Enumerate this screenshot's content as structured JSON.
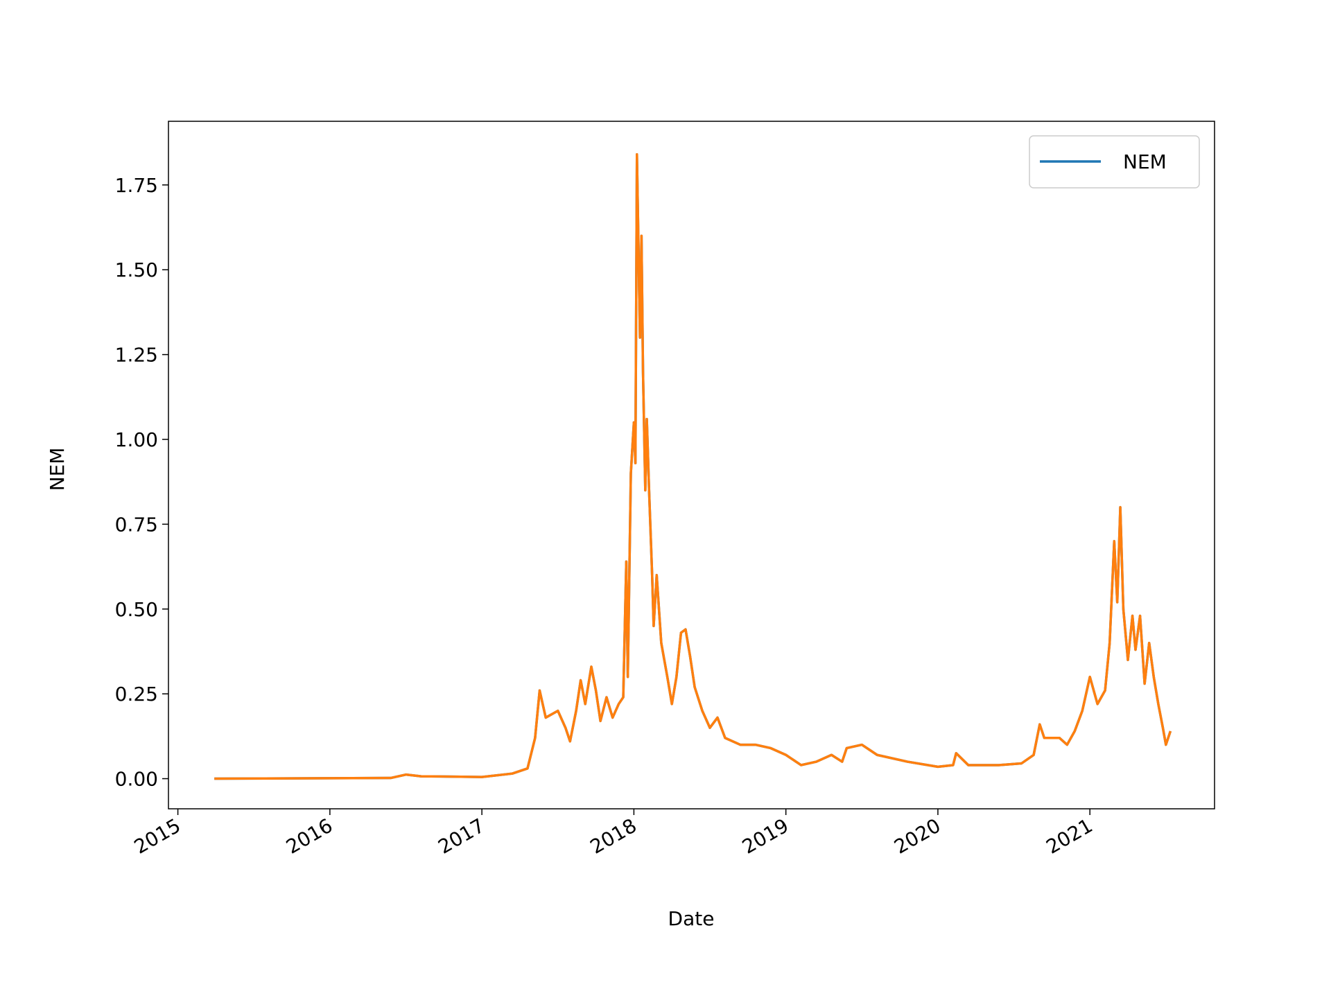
{
  "chart_data": {
    "type": "line",
    "xlabel": "Date",
    "ylabel": "NEM",
    "x": [
      2015.24,
      2016.4,
      2016.5,
      2016.6,
      2017.0,
      2017.2,
      2017.3,
      2017.35,
      2017.38,
      2017.42,
      2017.5,
      2017.55,
      2017.58,
      2017.62,
      2017.65,
      2017.68,
      2017.72,
      2017.75,
      2017.78,
      2017.82,
      2017.86,
      2017.9,
      2017.93,
      2017.95,
      2017.96,
      2017.98,
      2018.0,
      2018.01,
      2018.02,
      2018.04,
      2018.05,
      2018.06,
      2018.075,
      2018.085,
      2018.1,
      2018.12,
      2018.13,
      2018.15,
      2018.18,
      2018.2,
      2018.22,
      2018.25,
      2018.28,
      2018.31,
      2018.34,
      2018.37,
      2018.4,
      2018.45,
      2018.5,
      2018.55,
      2018.6,
      2018.7,
      2018.8,
      2018.9,
      2019.0,
      2019.1,
      2019.2,
      2019.3,
      2019.37,
      2019.4,
      2019.5,
      2019.6,
      2019.8,
      2020.0,
      2020.1,
      2020.12,
      2020.2,
      2020.4,
      2020.55,
      2020.63,
      2020.67,
      2020.7,
      2020.8,
      2020.85,
      2020.9,
      2020.95,
      2021.0,
      2021.05,
      2021.1,
      2021.13,
      2021.16,
      2021.18,
      2021.2,
      2021.22,
      2021.25,
      2021.28,
      2021.3,
      2021.33,
      2021.36,
      2021.39,
      2021.42,
      2021.45,
      2021.48,
      2021.5,
      2021.53
    ],
    "series": [
      {
        "name": "NEM",
        "color": "#1f77b4",
        "values": [
          0.0,
          0.002,
          0.012,
          0.007,
          0.005,
          0.015,
          0.03,
          0.12,
          0.26,
          0.18,
          0.2,
          0.15,
          0.11,
          0.2,
          0.29,
          0.22,
          0.33,
          0.26,
          0.17,
          0.24,
          0.18,
          0.22,
          0.24,
          0.64,
          0.3,
          0.9,
          1.05,
          0.93,
          1.84,
          1.3,
          1.6,
          1.2,
          0.85,
          1.06,
          0.85,
          0.6,
          0.45,
          0.6,
          0.4,
          0.35,
          0.3,
          0.22,
          0.3,
          0.43,
          0.44,
          0.36,
          0.27,
          0.2,
          0.15,
          0.18,
          0.12,
          0.1,
          0.1,
          0.09,
          0.07,
          0.04,
          0.05,
          0.07,
          0.05,
          0.09,
          0.1,
          0.07,
          0.05,
          0.035,
          0.04,
          0.075,
          0.04,
          0.04,
          0.045,
          0.07,
          0.16,
          0.12,
          0.12,
          0.1,
          0.14,
          0.2,
          0.3,
          0.22,
          0.26,
          0.4,
          0.7,
          0.52,
          0.8,
          0.5,
          0.35,
          0.48,
          0.38,
          0.48,
          0.28,
          0.4,
          0.3,
          0.22,
          0.15,
          0.1,
          0.14
        ]
      },
      {
        "color": "#ff7f0e",
        "values": [
          0.0,
          0.002,
          0.012,
          0.007,
          0.005,
          0.015,
          0.03,
          0.12,
          0.26,
          0.18,
          0.2,
          0.15,
          0.11,
          0.2,
          0.29,
          0.22,
          0.33,
          0.26,
          0.17,
          0.24,
          0.18,
          0.22,
          0.24,
          0.64,
          0.3,
          0.9,
          1.05,
          0.93,
          1.84,
          1.3,
          1.6,
          1.2,
          0.85,
          1.06,
          0.85,
          0.6,
          0.45,
          0.6,
          0.4,
          0.35,
          0.3,
          0.22,
          0.3,
          0.43,
          0.44,
          0.36,
          0.27,
          0.2,
          0.15,
          0.18,
          0.12,
          0.1,
          0.1,
          0.09,
          0.07,
          0.04,
          0.05,
          0.07,
          0.05,
          0.09,
          0.1,
          0.07,
          0.05,
          0.035,
          0.04,
          0.075,
          0.04,
          0.04,
          0.045,
          0.07,
          0.16,
          0.12,
          0.12,
          0.1,
          0.14,
          0.2,
          0.3,
          0.22,
          0.26,
          0.4,
          0.7,
          0.52,
          0.8,
          0.5,
          0.35,
          0.48,
          0.38,
          0.48,
          0.28,
          0.4,
          0.3,
          0.22,
          0.15,
          0.1,
          0.14
        ]
      }
    ],
    "xlim": [
      2014.938,
      2021.82
    ],
    "xticks": [
      2015,
      2016,
      2017,
      2018,
      2019,
      2020,
      2021
    ],
    "ylim": [
      -0.0888,
      1.9376
    ],
    "yticks": [
      {
        "value": 0,
        "label": "0.00"
      },
      0.25,
      {
        "value": 0.5,
        "label": "0.50"
      },
      0.75,
      {
        "value": 1,
        "label": "1.00"
      },
      1.25,
      {
        "value": 1.5,
        "label": "1.50"
      },
      1.75
    ],
    "legend": "upper right",
    "grid": false
  }
}
